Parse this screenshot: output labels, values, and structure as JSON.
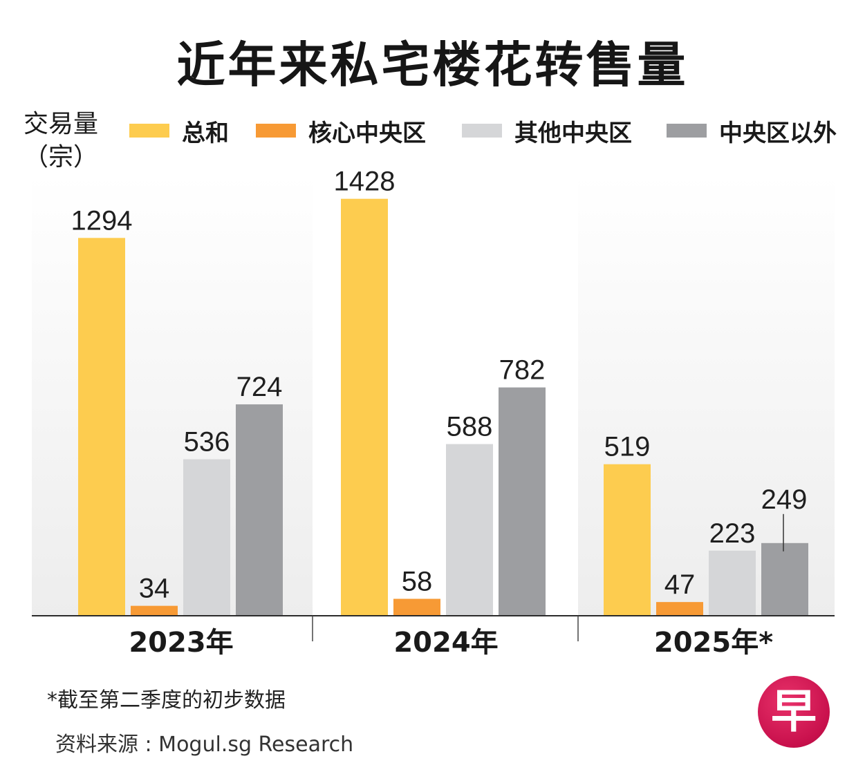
{
  "title": "近年来私宅楼花转售量",
  "chart_data": {
    "type": "bar",
    "title": "近年来私宅楼花转售量",
    "ylabel": "交易量（宗）",
    "ylabel_lines": [
      "交易量",
      "（宗）"
    ],
    "xlabel": "",
    "categories": [
      "2023年",
      "2024年",
      "2025年*"
    ],
    "series": [
      {
        "name": "总和",
        "color": "#fdcc4f",
        "values": [
          1294,
          1428,
          519
        ]
      },
      {
        "name": "核心中央区",
        "color": "#f79a35",
        "values": [
          34,
          58,
          47
        ]
      },
      {
        "name": "其他中央区",
        "color": "#d5d6d8",
        "values": [
          536,
          588,
          223
        ]
      },
      {
        "name": "中央区以外",
        "color": "#9d9ea1",
        "values": [
          724,
          782,
          249
        ]
      }
    ],
    "ylim": [
      0,
      1560
    ],
    "grid": false,
    "legend_position": "top"
  },
  "footnote": "*截至第二季度的初步数据",
  "source": "资料来源 : Mogul.sg Research",
  "logo_text": "早"
}
